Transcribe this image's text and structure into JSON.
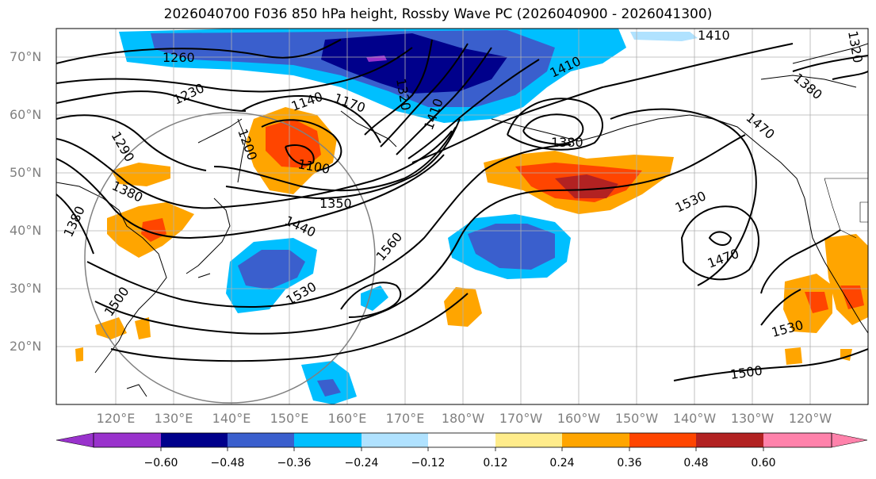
{
  "title": "2026040700 F036 850 hPa height, Rossby Wave PC (2026040900 - 2026041300)",
  "lat_labels": [
    "70°N",
    "60°N",
    "50°N",
    "40°N",
    "30°N",
    "20°N"
  ],
  "lon_labels": [
    "120°E",
    "130°E",
    "140°E",
    "150°E",
    "160°E",
    "170°E",
    "180°W",
    "170°W",
    "160°W",
    "150°W",
    "140°W",
    "130°W",
    "120°W"
  ],
  "contour_labels": [
    "1260",
    "1230",
    "1290",
    "1380",
    "1380",
    "1200",
    "1140",
    "1170",
    "1320",
    "1100",
    "1350",
    "1440",
    "1560",
    "1530",
    "1500",
    "1410",
    "1410",
    "1410",
    "1380",
    "1470",
    "1530",
    "1470",
    "1530",
    "1500",
    "1320",
    "1380"
  ],
  "colorbar": {
    "ticks": [
      "−0.60",
      "−0.48",
      "−0.36",
      "−0.24",
      "−0.12",
      "0.12",
      "0.24",
      "0.36",
      "0.48",
      "0.60"
    ],
    "colors": [
      "#9932cc",
      "#00008b",
      "#3a5fcd",
      "#00bfff",
      "#b0e2ff",
      "#ffffff",
      "#ffec8b",
      "#ffa500",
      "#ff4500",
      "#b22222",
      "#ff82ab"
    ]
  },
  "shading_colors": {
    "neg_light": "#00bfff",
    "neg_mid": "#3a5fcd",
    "neg_dark": "#00008b",
    "neg_darkest": "#9932cc",
    "pos_light": "#ffa500",
    "pos_mid": "#ff4500",
    "pos_dark": "#b22222"
  }
}
